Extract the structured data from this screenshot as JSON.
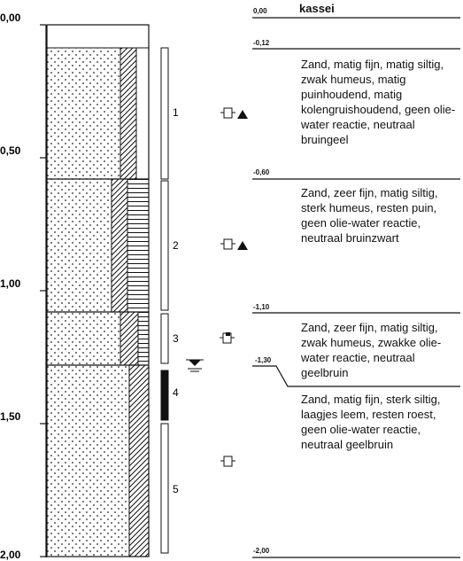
{
  "depth_axis": {
    "ticks": [
      "0,00",
      "0,50",
      "1,00",
      "1,50",
      "2,00"
    ]
  },
  "samples": [
    "1",
    "2",
    "3",
    "4",
    "5"
  ],
  "layers": [
    {
      "top_label": "0,00",
      "text": "kassei"
    },
    {
      "top_label": "-0,12",
      "text": "Zand, matig fijn, matig siltig, zwak humeus, matig puinhoudend, matig kolengruishoudend, geen olie-water reactie, neutraal bruingeel"
    },
    {
      "top_label": "-0,60",
      "text": "Zand, zeer fijn, matig siltig, sterk humeus, resten puin, geen olie-water reactie, neutraal bruinzwart"
    },
    {
      "top_label": "-1,10",
      "text": "Zand, zeer fijn, matig siltig, zwak humeus, zwakke olie-water reactie, neutraal geelbruin"
    },
    {
      "top_label": "-1,30",
      "text": "Zand, matig fijn, sterk siltig, laagjes leem, resten roest, geen olie-water reactie, neutraal geelbruin"
    },
    {
      "top_label": "-2,00",
      "text": ""
    }
  ],
  "icons": [
    "sample-jar-icon",
    "triangle-icon",
    "groundwater-level-icon"
  ]
}
